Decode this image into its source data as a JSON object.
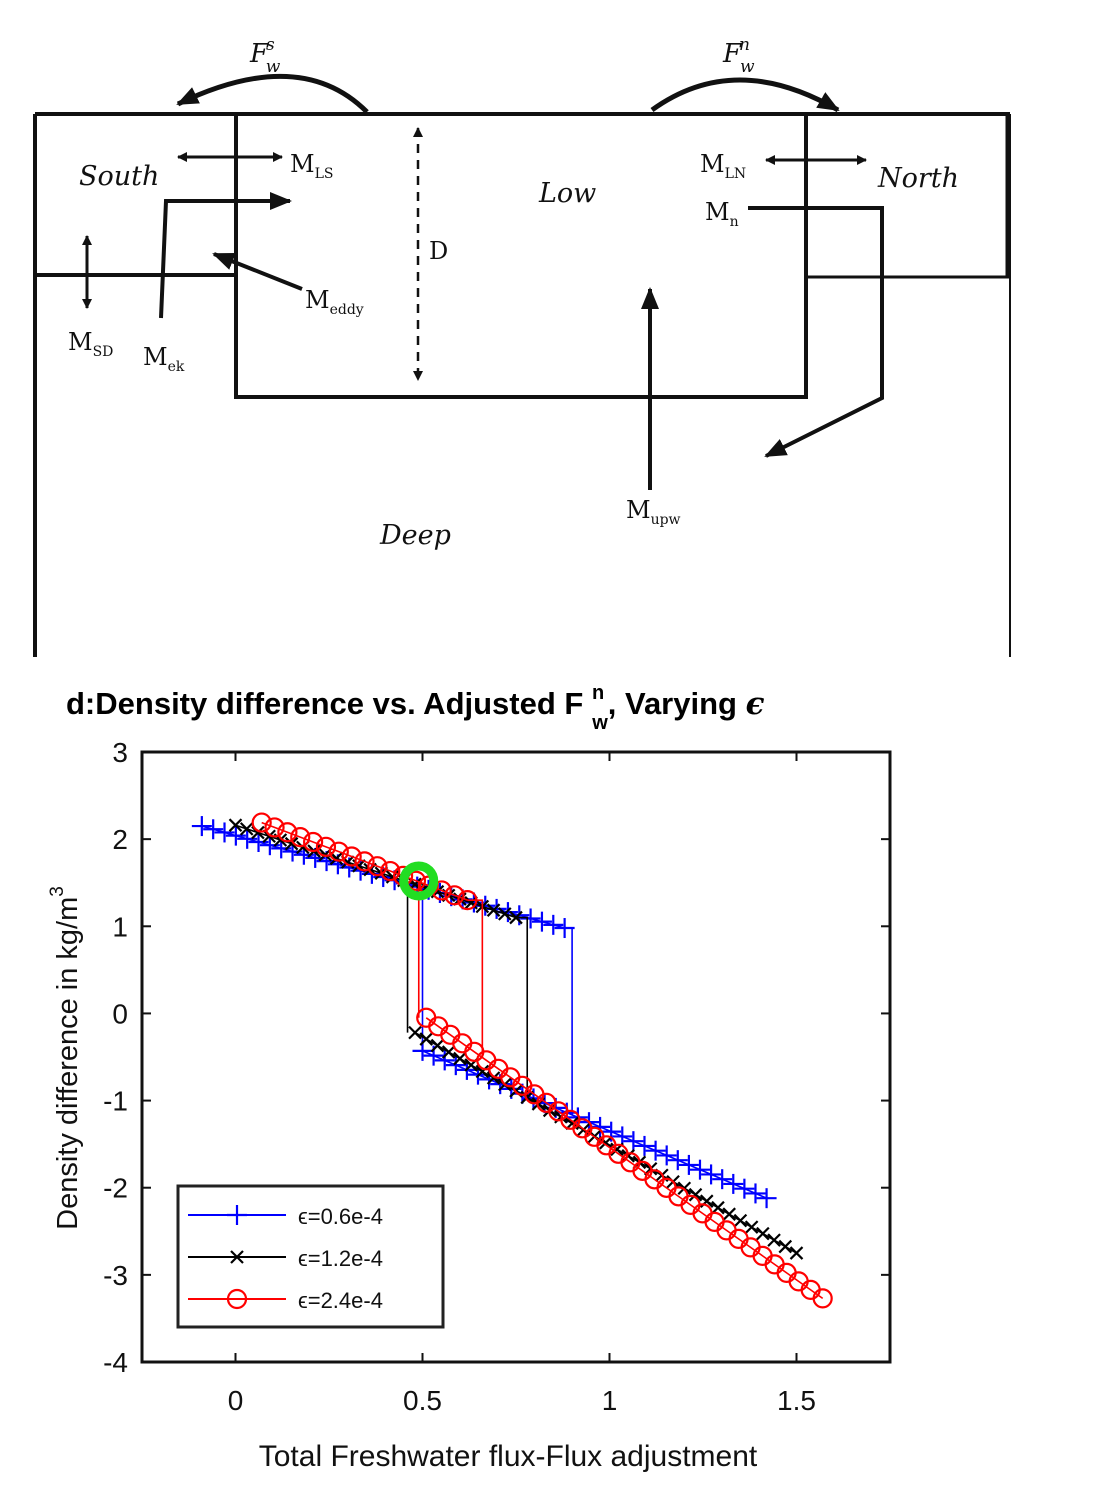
{
  "diagram": {
    "fw_south": {
      "base": "F",
      "sub": "w",
      "sup": "s"
    },
    "fw_north": {
      "base": "F",
      "sub": "w",
      "sup": "n"
    },
    "south_label": "South",
    "north_label": "North",
    "low_label": "Low",
    "deep_label": "Deep",
    "d_label": "D",
    "m_ls": {
      "base": "M",
      "sub": "LS"
    },
    "m_ln": {
      "base": "M",
      "sub": "LN"
    },
    "m_n": {
      "base": "M",
      "sub": "n"
    },
    "m_eddy": {
      "base": "M",
      "sub": "eddy"
    },
    "m_sd": {
      "base": "M",
      "sub": "SD"
    },
    "m_ek": {
      "base": "M",
      "sub": "ek"
    },
    "m_upw": {
      "base": "M",
      "sub": "upw"
    }
  },
  "chart_data": {
    "type": "line",
    "title": {
      "prefix": "d:Density difference vs. Adjusted F ",
      "sup": "n",
      "sub": "w",
      "suffix": ", Varying ",
      "symbol": "ϵ"
    },
    "xlabel": "Total Freshwater flux-Flux adjustment",
    "ylabel": {
      "text": "Density difference in kg/m",
      "sup": "3"
    },
    "xlim": [
      -0.25,
      1.75
    ],
    "ylim": [
      -4,
      3
    ],
    "xticks": [
      0,
      0.5,
      1,
      1.5
    ],
    "xtick_labels": [
      "0",
      "0.5",
      "1",
      "1.5"
    ],
    "yticks": [
      3,
      2,
      1,
      0,
      -1,
      -2,
      -3,
      -4
    ],
    "ytick_labels": [
      "3",
      "2",
      "1",
      "0",
      "-1",
      "-2",
      "-3",
      "-4"
    ],
    "grid": false,
    "legend_position": "bottom-left",
    "highlight": {
      "x": 0.49,
      "y": 1.52,
      "color": "#22dd22"
    },
    "series": [
      {
        "name": "ϵ=0.6e-4",
        "color": "#0000ff",
        "marker": "plus",
        "upper": {
          "x_start": -0.09,
          "x_end": 0.88,
          "y_start": 2.15,
          "y_end": 0.98,
          "n": 33
        },
        "lower": {
          "x_start": 0.5,
          "x_end": 1.42,
          "y_start": -0.43,
          "y_end": -2.12,
          "n": 32
        },
        "drop_x": 0.9,
        "rise_x": 0.5
      },
      {
        "name": "ϵ=1.2e-4",
        "color": "#000000",
        "marker": "x",
        "upper": {
          "x_start": 0.0,
          "x_end": 0.75,
          "y_start": 2.16,
          "y_end": 1.1,
          "n": 26
        },
        "lower": {
          "x_start": 0.48,
          "x_end": 1.5,
          "y_start": -0.22,
          "y_end": -2.75,
          "n": 35
        },
        "drop_x": 0.78,
        "rise_x": 0.46
      },
      {
        "name": "ϵ=2.4e-4",
        "color": "#ff0000",
        "marker": "circle",
        "upper": {
          "x_start": 0.07,
          "x_end": 0.62,
          "y_start": 2.19,
          "y_end": 1.3,
          "n": 17
        },
        "lower": {
          "x_start": 0.51,
          "x_end": 1.57,
          "y_start": -0.05,
          "y_end": -3.27,
          "n": 34
        },
        "drop_x": 0.66,
        "rise_x": 0.49
      }
    ]
  }
}
